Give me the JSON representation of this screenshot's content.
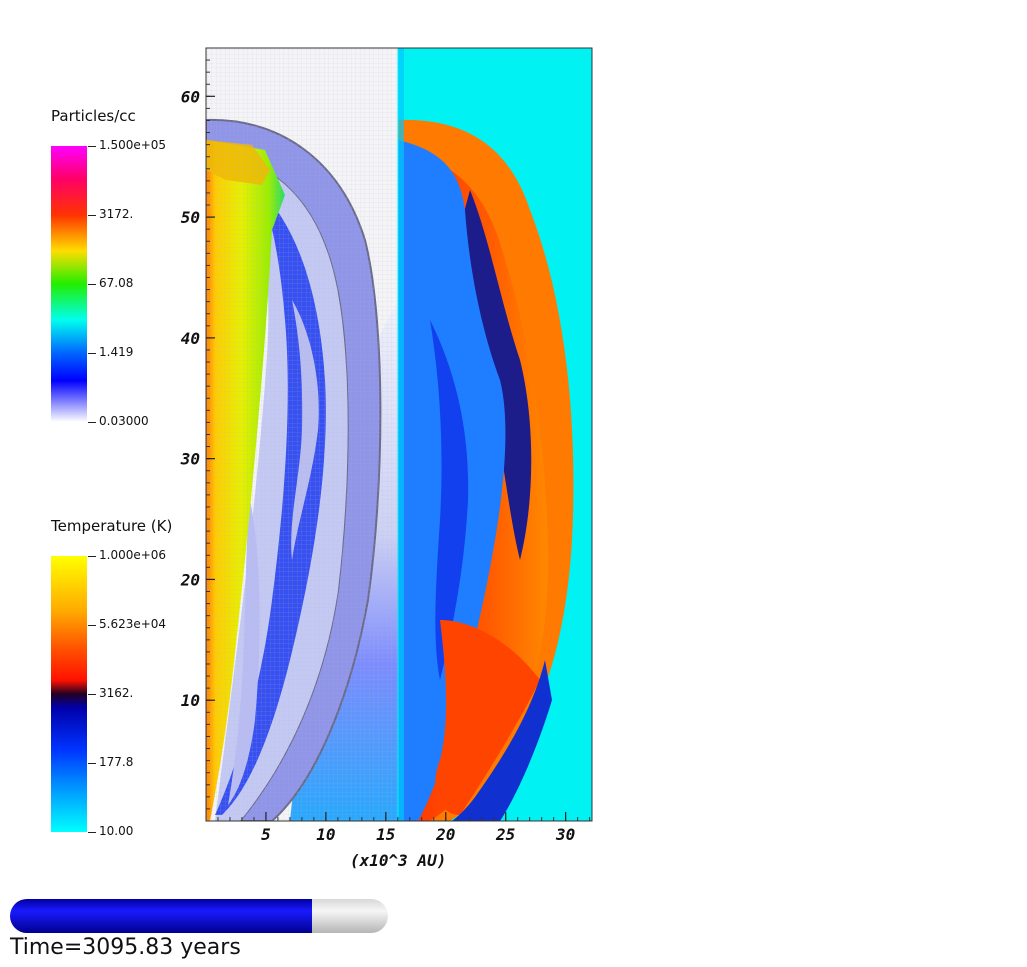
{
  "chart_data": {
    "type": "heatmap",
    "xlabel": "(x10^3 AU)",
    "ylabel": "",
    "x_ticks": [
      5,
      10,
      15,
      20,
      25,
      30
    ],
    "y_ticks": [
      10,
      20,
      30,
      40,
      50,
      60
    ],
    "xlim": [
      0,
      32.2
    ],
    "ylim": [
      0,
      64
    ],
    "panel_split_x": 16.1,
    "left_panel_field": "Particles/cc",
    "right_panel_field": "Temperature (K)",
    "colorbars": [
      {
        "name": "density",
        "title": "Particles/cc",
        "scale": "log",
        "range": [
          0.03,
          150000
        ],
        "tick_labels": [
          "1.500e+05",
          "3172.",
          "67.08",
          "1.419",
          "0.03000"
        ],
        "colors": [
          "#ff00ff",
          "#ff0055",
          "#ff4400",
          "#ffee00",
          "#00ee00",
          "#00ffff",
          "#0060ff",
          "#0000ff",
          "#ffffff"
        ]
      },
      {
        "name": "temperature",
        "title": "Temperature (K)",
        "scale": "log",
        "range": [
          10,
          1000000
        ],
        "tick_labels": [
          "1.000e+06",
          "5.623e+04",
          "3162.",
          "177.8",
          "10.00"
        ],
        "colors": [
          "#ffff00",
          "#ff8800",
          "#ff2200",
          "#000044",
          "#0000ff",
          "#0066ff",
          "#00ffff"
        ]
      }
    ]
  },
  "progress": {
    "fraction": 0.8
  },
  "time_label": "Time=3095.83 years"
}
